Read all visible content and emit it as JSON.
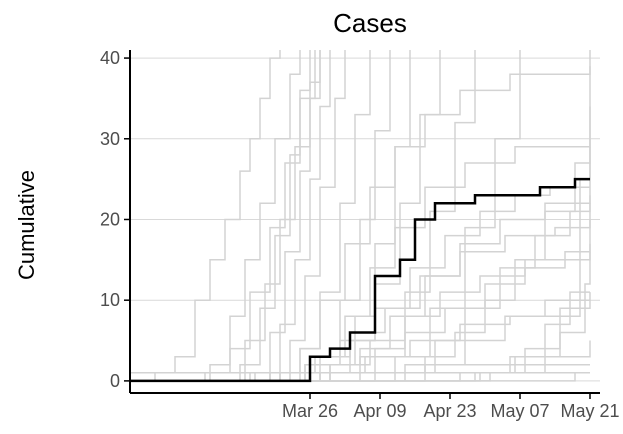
{
  "chart_data": {
    "type": "line",
    "title": "Cases",
    "xlabel": "",
    "ylabel": "Cumulative",
    "x_ticks": [
      "Mar 26",
      "Apr 09",
      "Apr 23",
      "May 07",
      "May 21"
    ],
    "x_tick_dates": [
      "2020-03-26",
      "2020-04-09",
      "2020-04-23",
      "2020-05-07",
      "2020-05-21"
    ],
    "y_ticks": [
      0,
      10,
      20,
      30,
      40
    ],
    "xlim": [
      "2020-02-19",
      "2020-05-23"
    ],
    "ylim": [
      -1.5,
      41
    ],
    "grid": {
      "horizontal": true,
      "vertical": false
    },
    "colors": {
      "highlight": "#000000",
      "background_series": "#d3d3d3",
      "grid": "#d9d9d9"
    },
    "highlight_series": {
      "x": [
        "2020-02-19",
        "2020-03-25",
        "2020-03-26",
        "2020-03-28",
        "2020-03-30",
        "2020-04-01",
        "2020-04-03",
        "2020-04-06",
        "2020-04-08",
        "2020-04-09",
        "2020-04-11",
        "2020-04-13",
        "2020-04-15",
        "2020-04-16",
        "2020-04-18",
        "2020-04-20",
        "2020-04-22",
        "2020-04-25",
        "2020-04-28",
        "2020-05-07",
        "2020-05-08",
        "2020-05-11",
        "2020-05-14",
        "2020-05-18",
        "2020-05-21"
      ],
      "y": [
        0,
        0,
        3,
        3,
        4,
        4,
        6,
        6,
        13,
        13,
        13,
        15,
        15,
        20,
        20,
        22,
        22,
        22,
        23,
        23,
        23,
        24,
        24,
        25,
        25
      ]
    },
    "background_series": [
      {
        "x": [
          "2020-02-19",
          "2020-03-01",
          "2020-03-10",
          "2020-03-20",
          "2020-04-05",
          "2020-05-05",
          "2020-05-21"
        ],
        "y": [
          1,
          1,
          1,
          1,
          1,
          1,
          1
        ]
      },
      {
        "x": [
          "2020-02-19",
          "2020-03-15",
          "2020-03-25",
          "2020-04-05",
          "2020-04-20",
          "2020-05-10",
          "2020-05-21"
        ],
        "y": [
          0,
          0,
          1,
          1,
          2,
          2,
          2
        ]
      },
      {
        "x": [
          "2020-02-19",
          "2020-02-24",
          "2020-02-28",
          "2020-03-03",
          "2020-03-06",
          "2020-03-09",
          "2020-03-12",
          "2020-03-14",
          "2020-03-16",
          "2020-03-18",
          "2020-03-20"
        ],
        "y": [
          0,
          1,
          3,
          10,
          15,
          20,
          26,
          30,
          35,
          40,
          42
        ]
      },
      {
        "x": [
          "2020-02-19",
          "2020-03-01",
          "2020-03-06",
          "2020-03-10",
          "2020-03-13",
          "2020-03-16",
          "2020-03-19",
          "2020-03-22",
          "2020-03-24"
        ],
        "y": [
          0,
          0,
          2,
          8,
          15,
          22,
          30,
          38,
          42
        ]
      },
      {
        "x": [
          "2020-02-19",
          "2020-03-05",
          "2020-03-10",
          "2020-03-14",
          "2020-03-18",
          "2020-03-21",
          "2020-03-24",
          "2020-03-27"
        ],
        "y": [
          0,
          1,
          4,
          11,
          19,
          27,
          35,
          42
        ]
      },
      {
        "x": [
          "2020-02-19",
          "2020-03-08",
          "2020-03-13",
          "2020-03-17",
          "2020-03-20",
          "2020-03-23",
          "2020-03-26",
          "2020-03-28"
        ],
        "y": [
          0,
          0,
          5,
          12,
          20,
          29,
          37,
          42
        ]
      },
      {
        "x": [
          "2020-02-19",
          "2020-03-12",
          "2020-03-16",
          "2020-03-19",
          "2020-03-22",
          "2020-03-24",
          "2020-03-26"
        ],
        "y": [
          0,
          2,
          9,
          18,
          28,
          36,
          42
        ]
      },
      {
        "x": [
          "2020-02-19",
          "2020-03-14",
          "2020-03-18",
          "2020-03-21",
          "2020-03-24",
          "2020-03-26",
          "2020-03-28"
        ],
        "y": [
          0,
          1,
          6,
          16,
          26,
          35,
          42
        ]
      },
      {
        "x": [
          "2020-02-19",
          "2020-03-16",
          "2020-03-20",
          "2020-03-23",
          "2020-03-26",
          "2020-03-28",
          "2020-03-30"
        ],
        "y": [
          0,
          0,
          7,
          15,
          25,
          34,
          42
        ]
      },
      {
        "x": [
          "2020-02-19",
          "2020-03-18",
          "2020-03-22",
          "2020-03-25",
          "2020-03-28",
          "2020-03-31",
          "2020-04-02"
        ],
        "y": [
          0,
          1,
          5,
          13,
          24,
          35,
          42
        ]
      },
      {
        "x": [
          "2020-02-19",
          "2020-03-20",
          "2020-03-24",
          "2020-03-28",
          "2020-04-01",
          "2020-04-04",
          "2020-04-07"
        ],
        "y": [
          0,
          0,
          4,
          11,
          22,
          33,
          42
        ]
      },
      {
        "x": [
          "2020-02-19",
          "2020-03-22",
          "2020-03-27",
          "2020-04-01",
          "2020-04-05",
          "2020-04-08",
          "2020-04-11"
        ],
        "y": [
          0,
          1,
          3,
          10,
          20,
          31,
          42
        ]
      },
      {
        "x": [
          "2020-02-19",
          "2020-03-25",
          "2020-03-30",
          "2020-04-04",
          "2020-04-08",
          "2020-04-12",
          "2020-04-15"
        ],
        "y": [
          0,
          0,
          2,
          8,
          17,
          29,
          42
        ]
      },
      {
        "x": [
          "2020-02-19",
          "2020-03-28",
          "2020-04-03",
          "2020-04-08",
          "2020-04-13",
          "2020-04-17",
          "2020-04-21"
        ],
        "y": [
          0,
          1,
          5,
          12,
          22,
          33,
          42
        ]
      },
      {
        "x": [
          "2020-02-19",
          "2020-04-01",
          "2020-04-08",
          "2020-04-14",
          "2020-04-19",
          "2020-04-24",
          "2020-04-28"
        ],
        "y": [
          0,
          0,
          4,
          11,
          21,
          32,
          42
        ]
      },
      {
        "x": [
          "2020-02-19",
          "2020-04-05",
          "2020-04-12",
          "2020-04-19",
          "2020-04-26",
          "2020-05-02",
          "2020-05-07"
        ],
        "y": [
          0,
          1,
          3,
          9,
          19,
          30,
          42
        ]
      },
      {
        "x": [
          "2020-02-19",
          "2020-03-20",
          "2020-03-24",
          "2020-03-28",
          "2020-04-02",
          "2020-04-07",
          "2020-04-12",
          "2020-04-18",
          "2020-04-25",
          "2020-05-05",
          "2020-05-21"
        ],
        "y": [
          0,
          1,
          4,
          10,
          17,
          24,
          29,
          33,
          36,
          38,
          39
        ]
      },
      {
        "x": [
          "2020-02-19",
          "2020-03-24",
          "2020-03-28",
          "2020-04-02",
          "2020-04-07",
          "2020-04-12",
          "2020-04-18",
          "2020-04-26",
          "2020-05-06",
          "2020-05-21"
        ],
        "y": [
          0,
          0,
          3,
          8,
          14,
          19,
          24,
          27,
          29,
          30
        ]
      },
      {
        "x": [
          "2020-02-19",
          "2020-03-18",
          "2020-03-26",
          "2020-04-03",
          "2020-04-10",
          "2020-04-17",
          "2020-04-25",
          "2020-05-04",
          "2020-05-14",
          "2020-05-21"
        ],
        "y": [
          0,
          1,
          3,
          6,
          9,
          13,
          16,
          18,
          19,
          20
        ]
      },
      {
        "x": [
          "2020-02-19",
          "2020-03-22",
          "2020-03-30",
          "2020-04-07",
          "2020-04-14",
          "2020-04-21",
          "2020-04-29",
          "2020-05-08",
          "2020-05-21"
        ],
        "y": [
          0,
          0,
          2,
          5,
          8,
          11,
          13,
          15,
          16
        ]
      },
      {
        "x": [
          "2020-02-19",
          "2020-03-15",
          "2020-03-25",
          "2020-04-05",
          "2020-04-15",
          "2020-04-25",
          "2020-05-05",
          "2020-05-15",
          "2020-05-21"
        ],
        "y": [
          0,
          1,
          2,
          3,
          5,
          7,
          8,
          9,
          10
        ]
      },
      {
        "x": [
          "2020-02-19",
          "2020-03-28",
          "2020-04-06",
          "2020-04-14",
          "2020-04-22",
          "2020-04-30",
          "2020-05-08",
          "2020-05-16",
          "2020-05-21"
        ],
        "y": [
          0,
          1,
          3,
          6,
          9,
          12,
          14,
          16,
          17
        ]
      },
      {
        "x": [
          "2020-02-19",
          "2020-04-10",
          "2020-04-18",
          "2020-04-26",
          "2020-05-04",
          "2020-05-12",
          "2020-05-21"
        ],
        "y": [
          0,
          0,
          2,
          5,
          8,
          10,
          11
        ]
      },
      {
        "x": [
          "2020-02-19",
          "2020-04-15",
          "2020-04-25",
          "2020-05-05",
          "2020-05-15",
          "2020-05-20",
          "2020-05-21"
        ],
        "y": [
          0,
          0,
          1,
          3,
          6,
          12,
          34
        ]
      },
      {
        "x": [
          "2020-02-19",
          "2020-04-18",
          "2020-04-28",
          "2020-05-08",
          "2020-05-15",
          "2020-05-19",
          "2020-05-21"
        ],
        "y": [
          0,
          0,
          1,
          4,
          8,
          25,
          42
        ]
      },
      {
        "x": [
          "2020-02-19",
          "2020-04-20",
          "2020-05-01",
          "2020-05-12",
          "2020-05-21"
        ],
        "y": [
          0,
          0,
          1,
          3,
          5
        ]
      },
      {
        "x": [
          "2020-02-19",
          "2020-03-25",
          "2020-04-01",
          "2020-04-08",
          "2020-04-15",
          "2020-04-22",
          "2020-04-29",
          "2020-05-06",
          "2020-05-13",
          "2020-05-21"
        ],
        "y": [
          0,
          2,
          5,
          9,
          14,
          18,
          21,
          23,
          24,
          24
        ]
      },
      {
        "x": [
          "2020-02-19",
          "2020-03-30",
          "2020-04-05",
          "2020-04-11",
          "2020-04-18",
          "2020-04-25",
          "2020-05-03",
          "2020-05-12",
          "2020-05-21"
        ],
        "y": [
          0,
          1,
          4,
          8,
          13,
          17,
          20,
          22,
          23
        ]
      },
      {
        "x": [
          "2020-02-19",
          "2020-04-08",
          "2020-04-14",
          "2020-04-20",
          "2020-04-26",
          "2020-05-03",
          "2020-05-10",
          "2020-05-17",
          "2020-05-21"
        ],
        "y": [
          0,
          0,
          2,
          5,
          9,
          14,
          18,
          21,
          22
        ]
      },
      {
        "x": [
          "2020-02-19",
          "2020-04-12",
          "2020-04-18",
          "2020-04-24",
          "2020-04-30",
          "2020-05-06",
          "2020-05-12",
          "2020-05-18",
          "2020-05-21"
        ],
        "y": [
          0,
          1,
          3,
          6,
          10,
          15,
          21,
          27,
          29
        ]
      },
      {
        "x": [
          "2020-02-19",
          "2020-04-22",
          "2020-04-29",
          "2020-05-06",
          "2020-05-12",
          "2020-05-17",
          "2020-05-21"
        ],
        "y": [
          0,
          0,
          1,
          3,
          7,
          11,
          11
        ]
      },
      {
        "x": [
          "2020-02-19",
          "2020-05-01",
          "2020-05-10",
          "2020-05-18",
          "2020-05-21"
        ],
        "y": [
          0,
          0,
          0,
          1,
          1
        ]
      }
    ]
  }
}
